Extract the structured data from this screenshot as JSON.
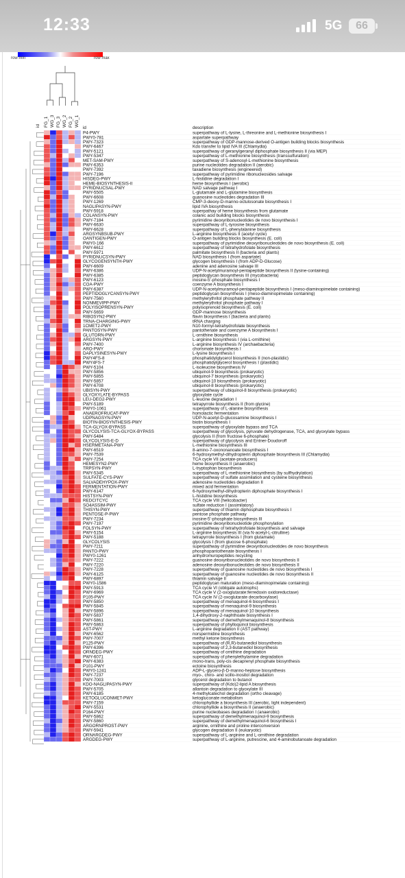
{
  "status_bar": {
    "time": "12:33",
    "network": "5G",
    "battery": "66"
  },
  "legend": {
    "min_label": "row min",
    "max_label": "row max",
    "colors": [
      "#0000ff",
      "#ffffff",
      "#ff0000"
    ]
  },
  "chart_data": {
    "type": "heatmap",
    "columns": [
      "id",
      "FG_1",
      "WG_3",
      "FG_3",
      "WG_2",
      "FG_2",
      "WG_1"
    ],
    "table_headers": {
      "id": "id",
      "description": "description"
    },
    "scale": "row-normalized, blue = row min, red = row max",
    "rows": [
      [
        "P4-PWY",
        "superpathway of L-lysine, L-threonine and L-methionine biosynthesis I"
      ],
      [
        "PWY0-781",
        "aspartate superpathway"
      ],
      [
        "PWY-7323",
        "superpathway of GDP-mannose-derived O-antigen building blocks biosynthesis"
      ],
      [
        "PWY-6467",
        "Kdo transfer to lipid IVA III (Chlamydia)"
      ],
      [
        "PWY-5121",
        "superpathway of geranylgeranyl diphosphate biosynthesis II (via MEP)"
      ],
      [
        "PWY-5347",
        "superpathway of L-methionine biosynthesis (transsulfuration)"
      ],
      [
        "MET-SAM-PWY",
        "superpathway of S-adenosyl-L-methionine biosynthesis"
      ],
      [
        "PWY-6353",
        "purine nucleotides degradation II (aerobic)"
      ],
      [
        "PWY-7392",
        "taxadiene biosynthesis (engineered)"
      ],
      [
        "PWY-7196",
        "superpathway of pyrimidine ribonucleosides salvage"
      ],
      [
        "HISDEG-PWY",
        "L-histidine degradation I"
      ],
      [
        "HEME-BIOSYNTHESIS-II",
        "heme biosynthesis I (aerobic)"
      ],
      [
        "PYRIDNUCSAL-PWY",
        "NAD salvage pathway I"
      ],
      [
        "PWY-5505",
        "L-glutamate and L-glutamine biosynthesis"
      ],
      [
        "PWY-6608",
        "guanosine nucleotides degradation III"
      ],
      [
        "PWY-1269",
        "CMP-3-deoxy-D-manno-octulosonate biosynthesis I"
      ],
      [
        "NAGLIPASYN-PWY",
        "lipid IVA biosynthesis"
      ],
      [
        "PWY-5918",
        "superpathay of heme biosynthesis from glutamate"
      ],
      [
        "COLANSYN-PWY",
        "colanic acid building blocks biosynthesis"
      ],
      [
        "PWY-7184",
        "pyrimidine deoxyribonucleotides de novo biosynthesis I"
      ],
      [
        "PWY-6630",
        "superpathway of L-tyrosine biosynthesis"
      ],
      [
        "PWY-6628",
        "superpathway of L-phenylalanine biosynthesis"
      ],
      [
        "ARGSYNBSUB-PWY",
        "L-arginine biosynthesis II (acetyl cycle)"
      ],
      [
        "OANTIGEN-PWY",
        "O-antigen building blocks biosynthesis (E. coli)"
      ],
      [
        "PWY0-166",
        "superpathway of pyrimidine deoxyribonucleotides de novo biosynthesis (E. coli)"
      ],
      [
        "PWY-6612",
        "superpathway of tetrahydrofolate biosynthesis"
      ],
      [
        "PWY-5971",
        "palmitate biosynthesis II (bacteria and plants)"
      ],
      [
        "PYRIDNUCSYN-PWY",
        "NAD biosynthesis I (from aspartate)"
      ],
      [
        "GLYCOGENSYNTH-PWY",
        "glycogen biosynthesis I (from ADP-D-Glucose)"
      ],
      [
        "PWY-6609",
        "adenine and adenosine salvage III"
      ],
      [
        "PWY-6386",
        "UDP-N-acetylmuramoyl-pentapeptide biosynthesis II (lysine-containing)"
      ],
      [
        "PWY-6385",
        "peptidoglycan biosynthesis III (mycobacteria)"
      ],
      [
        "PWY-6123",
        "inosine-5'-phosphate biosynthesis I"
      ],
      [
        "COA-PWY",
        "coenzyme A biosynthesis I"
      ],
      [
        "PWY-6387",
        "UDP-N-acetylmuramoyl-pentapeptide biosynthesis I (meso-diaminopimelate containing)"
      ],
      [
        "PEPTIDOGLYCANSYN-PWY",
        "peptidoglycan biosynthesis I (meso-diaminopimelate containing)"
      ],
      [
        "PWY-7560",
        "methylerythritol phosphate pathway II"
      ],
      [
        "NONMEVIPP-PWY",
        "methylerythritol phosphate pathway I"
      ],
      [
        "POLYISOPRENSYN-PWY",
        "polyisoprenoid biosynthesis (E. coli)"
      ],
      [
        "PWY-5659",
        "GDP-mannose biosynthesis"
      ],
      [
        "RIBOSYN2-PWY",
        "flavin biosynthesis I (bacteria and plants)"
      ],
      [
        "TRNA-CHARGING-PWY",
        "tRNA charging"
      ],
      [
        "1CMET2-PWY",
        "N10-formyl-tetrahydrofolate biosynthesis"
      ],
      [
        "PANTOSYN-PWY",
        "pantothenate and coenzyme A biosynthesis I"
      ],
      [
        "GLUTORN-PWY",
        "L-ornithine biosynthesis"
      ],
      [
        "ARGSYN-PWY",
        "L-arginine biosynthesis I (via L-ornithine)"
      ],
      [
        "PWY-7400",
        "L-arginine biosynthesis IV (archaebacteria)"
      ],
      [
        "ARO-PWY",
        "chorismate biosynthesis I"
      ],
      [
        "DAPLYSINESYN-PWY",
        "L-lysine biosynthesis I"
      ],
      [
        "PWY4FS-8",
        "phosphatidylglycerol biosynthesis II (non-plastidic)"
      ],
      [
        "PWY4FS-7",
        "phosphatidylglycerol biosynthesis I (plastidic)"
      ],
      [
        "PWY-5104",
        "L-isoleucine biosynthesis IV"
      ],
      [
        "PWY-5856",
        "ubiquinol-9 biosynthesis (prokaryotic)"
      ],
      [
        "PWY-5855",
        "ubiquinol-7 biosynthesis (prokaryotic)"
      ],
      [
        "PWY-5857",
        "ubiquinol-10 biosynthesis (prokaryotic)"
      ],
      [
        "PWY-6708",
        "ubiquinol-8 biosynthesis (prokaryotic)"
      ],
      [
        "UBISYN-PWY",
        "superpathway of ubiquinol-8 biosynthesis (prokaryotic)"
      ],
      [
        "GLYOXYLATE-BYPASS",
        "glyoxylate cycle"
      ],
      [
        "LEU-DEG2-PWY",
        "L-leucine degradation I"
      ],
      [
        "PWY-5189",
        "tetrapyrrole biosynthesis II (from glycine)"
      ],
      [
        "PWY0-1061",
        "superpathway of L-alanine biosynthesis"
      ],
      [
        "ANAEROFRUCAT-PWY",
        "homolactic fermentation"
      ],
      [
        "UDPNAGSYN-PWY",
        "UDP-N-acetyl-D-glucosamine biosynthesis I"
      ],
      [
        "BIOTIN-BIOSYNTHESIS-PWY",
        "biotin biosynthesis I"
      ],
      [
        "TCA-GLYOX-BYPASS",
        "superpathway of glyoxylate bypass and TCA"
      ],
      [
        "GLYCOLYSIS-TCA-GLYOX-BYPASS",
        "superpathway of glycolysis, pyruvate dehydrogenase, TCA, and glyoxylate bypass"
      ],
      [
        "PWY-5484",
        "glycolysis II (from fructose 6-phosphate)"
      ],
      [
        "GLYCOLYSIS-E-D",
        "superpathway of glycolysis and Entner-Doudoroff"
      ],
      [
        "HSERMETANA-PWY",
        "L-methionine biosynthesis III"
      ],
      [
        "PWY-6519",
        "8-amino-7-oxononanoate biosynthesis I"
      ],
      [
        "PWY-7539",
        "6-hydroxymethyl-dihydropterin diphosphate biosynthesis III (Chlamydia)"
      ],
      [
        "PWY-7254",
        "TCA cycle VII (acetate-producers)"
      ],
      [
        "HEMESYN2-PWY",
        "heme biosynthesis II (anaerobic)"
      ],
      [
        "TRPSYN-PWY",
        "L-tryptophan biosynthesis"
      ],
      [
        "PWY-5345",
        "superpathway of L-methionine biosynthesis (by sulfhydrylation)"
      ],
      [
        "SULFATE-CYS-PWY",
        "superpathway of sulfate assimilation and cysteine biosynthesis"
      ],
      [
        "SALVADEHYPOX-PWY",
        "adenosine nucleotides degradation II"
      ],
      [
        "FERMENTATION-PWY",
        "mixed acid fermentation"
      ],
      [
        "PWY-6147",
        "6-hydroxymethyl-dihydropterin diphosphate biosynthesis I"
      ],
      [
        "HISTSYN-PWY",
        "L-histidine biosynthesis"
      ],
      [
        "REDCITCYC",
        "TCA cycle VIII (helicobacter)"
      ],
      [
        "SO4ASSIM-PWY",
        "sulfate reduction I (assimilatory)"
      ],
      [
        "THISYN-PWY",
        "superpathway of thiamin diphosphate biosynthesis I"
      ],
      [
        "PENTOSE-P-PWY",
        "pentose phosphate pathway"
      ],
      [
        "PWY-7234",
        "inosine-5'-phosphate biosynthesis III"
      ],
      [
        "PWY-7197",
        "pyrimidine deoxyribonucleotide phosphorylation"
      ],
      [
        "FOLSYN-PWY",
        "superpathway of tetrahydrofolate biosynthesis and salvage"
      ],
      [
        "PWY-5154",
        "L-arginine biosynthesis III (via N-acetyl-L-citrulline)"
      ],
      [
        "PWY-5188",
        "tetrapyrrole biosynthesis I (from glutamate)"
      ],
      [
        "GLYCOLYSIS",
        "glycolysis I (from glucose 6-phosphate)"
      ],
      [
        "PWY-7211",
        "superpathway of pyrimidine deoxyribonucleotides de novo biosynthesis"
      ],
      [
        "PANTO-PWY",
        "phosphopantothenate biosynthesis I"
      ],
      [
        "PWY0-1261",
        "anhydromuropeptides recycling"
      ],
      [
        "PWY-7222",
        "guanosine deoxyribonucleotides de novo biosynthesis II"
      ],
      [
        "PWY-7220",
        "adenosine deoxyribonucleotides de novo biosynthesis II"
      ],
      [
        "PWY-7228",
        "superpathway of guanosine nucleotides de novo biosynthesis I"
      ],
      [
        "PWY-6125",
        "superpathway of guanosine nucleotides de novo biosynthesis II"
      ],
      [
        "PWY-6897",
        "thiamin salvage II"
      ],
      [
        "PWY0-1586",
        "peptidoglycan maturation (meso-diaminopimelate containing)"
      ],
      [
        "PWY-5913",
        "TCA cycle VI (obligate autotrophs)"
      ],
      [
        "PWY-6969",
        "TCA cycle V (2-oxoglutarate:ferredoxin oxidoreductase)"
      ],
      [
        "P105-PWY",
        "TCA cycle IV (2-oxoglutarate decarboxylase)"
      ],
      [
        "PWY-5850",
        "superpathway of menaquinol-6 biosynthesis I"
      ],
      [
        "PWY-5845",
        "superpathway of menaquinol-9 biosynthesis"
      ],
      [
        "PWY-5896",
        "superpathway of menaquinol-10 biosynthesis"
      ],
      [
        "PWY-5837",
        "1,4-dihydroxy-2-naphthoate biosynthesis I"
      ],
      [
        "PWY-5861",
        "superpathway of demethylmenaquinol-8 biosynthesis"
      ],
      [
        "PWY-5863",
        "superpathway of phylloquinol biosynthesis"
      ],
      [
        "AST-PWY",
        "L-arginine degradation II (AST pathway)"
      ],
      [
        "PWY-6562",
        "norspermidine biosynthesis"
      ],
      [
        "PWY-7007",
        "methyl ketone biosynthesis"
      ],
      [
        "P125-PWY",
        "superpathway of (R,R)-butanediol biosynthesis"
      ],
      [
        "PWY-6396",
        "superpathway of 2,3-butanediol biosynthesis"
      ],
      [
        "ORNDEG-PWY",
        "superpathway of ornithine degradation"
      ],
      [
        "PWY-6071",
        "superpathway of phenylethylamine degradation"
      ],
      [
        "PWY-6383",
        "mono-trans, poly-cis decaprenyl phosphate biosynthesis"
      ],
      [
        "P101-PWY",
        "ectoine biosynthesis"
      ],
      [
        "PWY0-1241",
        "ADP-L-glycero-&beta;-D-manno-heptose biosynthesis"
      ],
      [
        "PWY-7237",
        "myo-, chiro- and scillo-inositol degradation"
      ],
      [
        "PWY-7003",
        "glycerol degradation to butanol"
      ],
      [
        "KDO-NAGLIPASYN-PWY",
        "superpathway of (Kdo)2-lipid A biosynthesis"
      ],
      [
        "PWY-5705",
        "allantoin degradation to glyoxylate III"
      ],
      [
        "PWY-6185",
        "4-methylcatechol degradation (ortho cleavage)"
      ],
      [
        "KETOGLUCONMET-PWY",
        "ketogluconate metabolism"
      ],
      [
        "PWY-7159",
        "chlorophyllide a biosynthesis III (aerobic, light independent)"
      ],
      [
        "PWY-5531",
        "chlorophyllide a biosynthesis II (anaerobic)"
      ],
      [
        "P164-PWY",
        "purine nucleobases degradation I (anaerobic)"
      ],
      [
        "PWY-5862",
        "superpathway of demethylmenaquinol-9 biosynthesis"
      ],
      [
        "PWY-5860",
        "superpathway of demethylmenaquinol-6 biosynthesis I"
      ],
      [
        "ARGORNPROST-PWY",
        "arginine, ornithine and proline interconversion"
      ],
      [
        "PWY-5941",
        "glycogen degradation II (eukaryotic)"
      ],
      [
        "ORNARGDEG-PWY",
        "superpathway of L-arginine and L-ornithine degradation"
      ],
      [
        "ARGDEG-PWY",
        "superpathway of L-arginine, putrescine, and 4-aminobutanoate degradation"
      ]
    ]
  }
}
